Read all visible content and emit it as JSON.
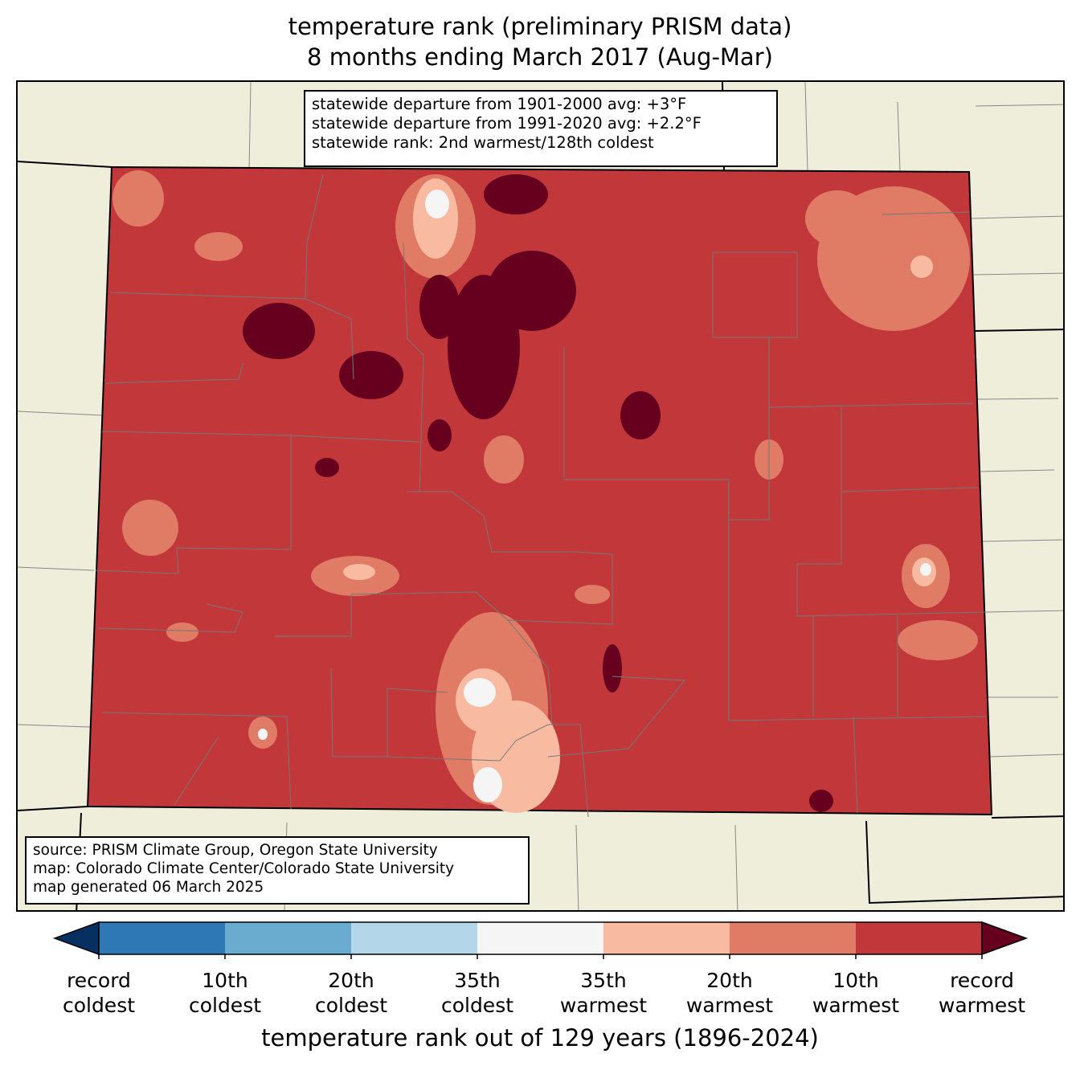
{
  "title": {
    "line1": "temperature rank (preliminary PRISM data)",
    "line2": "8 months ending March 2017 (Aug-Mar)"
  },
  "stats_box": [
    "statewide departure from 1901-2000 avg: +3°F",
    "statewide departure from 1991-2020 avg: +2.2°F",
    "statewide rank: 2nd warmest/128th coldest"
  ],
  "source_box": [
    "source: PRISM Climate Group, Oregon State University",
    "map: Colorado Climate Center/Colorado State University",
    "map generated 06 March 2025"
  ],
  "colorbar": {
    "label": "temperature rank out of 129 years (1896-2024)",
    "ticks": [
      {
        "line1": "record",
        "line2": "coldest"
      },
      {
        "line1": "10th",
        "line2": "coldest"
      },
      {
        "line1": "20th",
        "line2": "coldest"
      },
      {
        "line1": "35th",
        "line2": "coldest"
      },
      {
        "line1": "35th",
        "line2": "warmest"
      },
      {
        "line1": "20th",
        "line2": "warmest"
      },
      {
        "line1": "10th",
        "line2": "warmest"
      },
      {
        "line1": "record",
        "line2": "warmest"
      }
    ],
    "colors": {
      "below_min": "#053061",
      "bins": [
        "#2e78b5",
        "#6aacd0",
        "#b3d6e8",
        "#f5f5f5",
        "#f8bba1",
        "#e07b65",
        "#c1373a"
      ],
      "above_max": "#67001f"
    }
  },
  "map_colors": {
    "land": "#efeedb",
    "state_fill": "#c1373a"
  }
}
